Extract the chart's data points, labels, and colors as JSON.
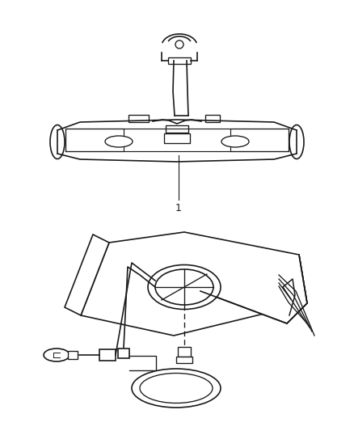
{
  "background_color": "#ffffff",
  "line_color": "#1a1a1a",
  "label_1": "1",
  "fig_width": 4.38,
  "fig_height": 5.33,
  "dpi": 100
}
